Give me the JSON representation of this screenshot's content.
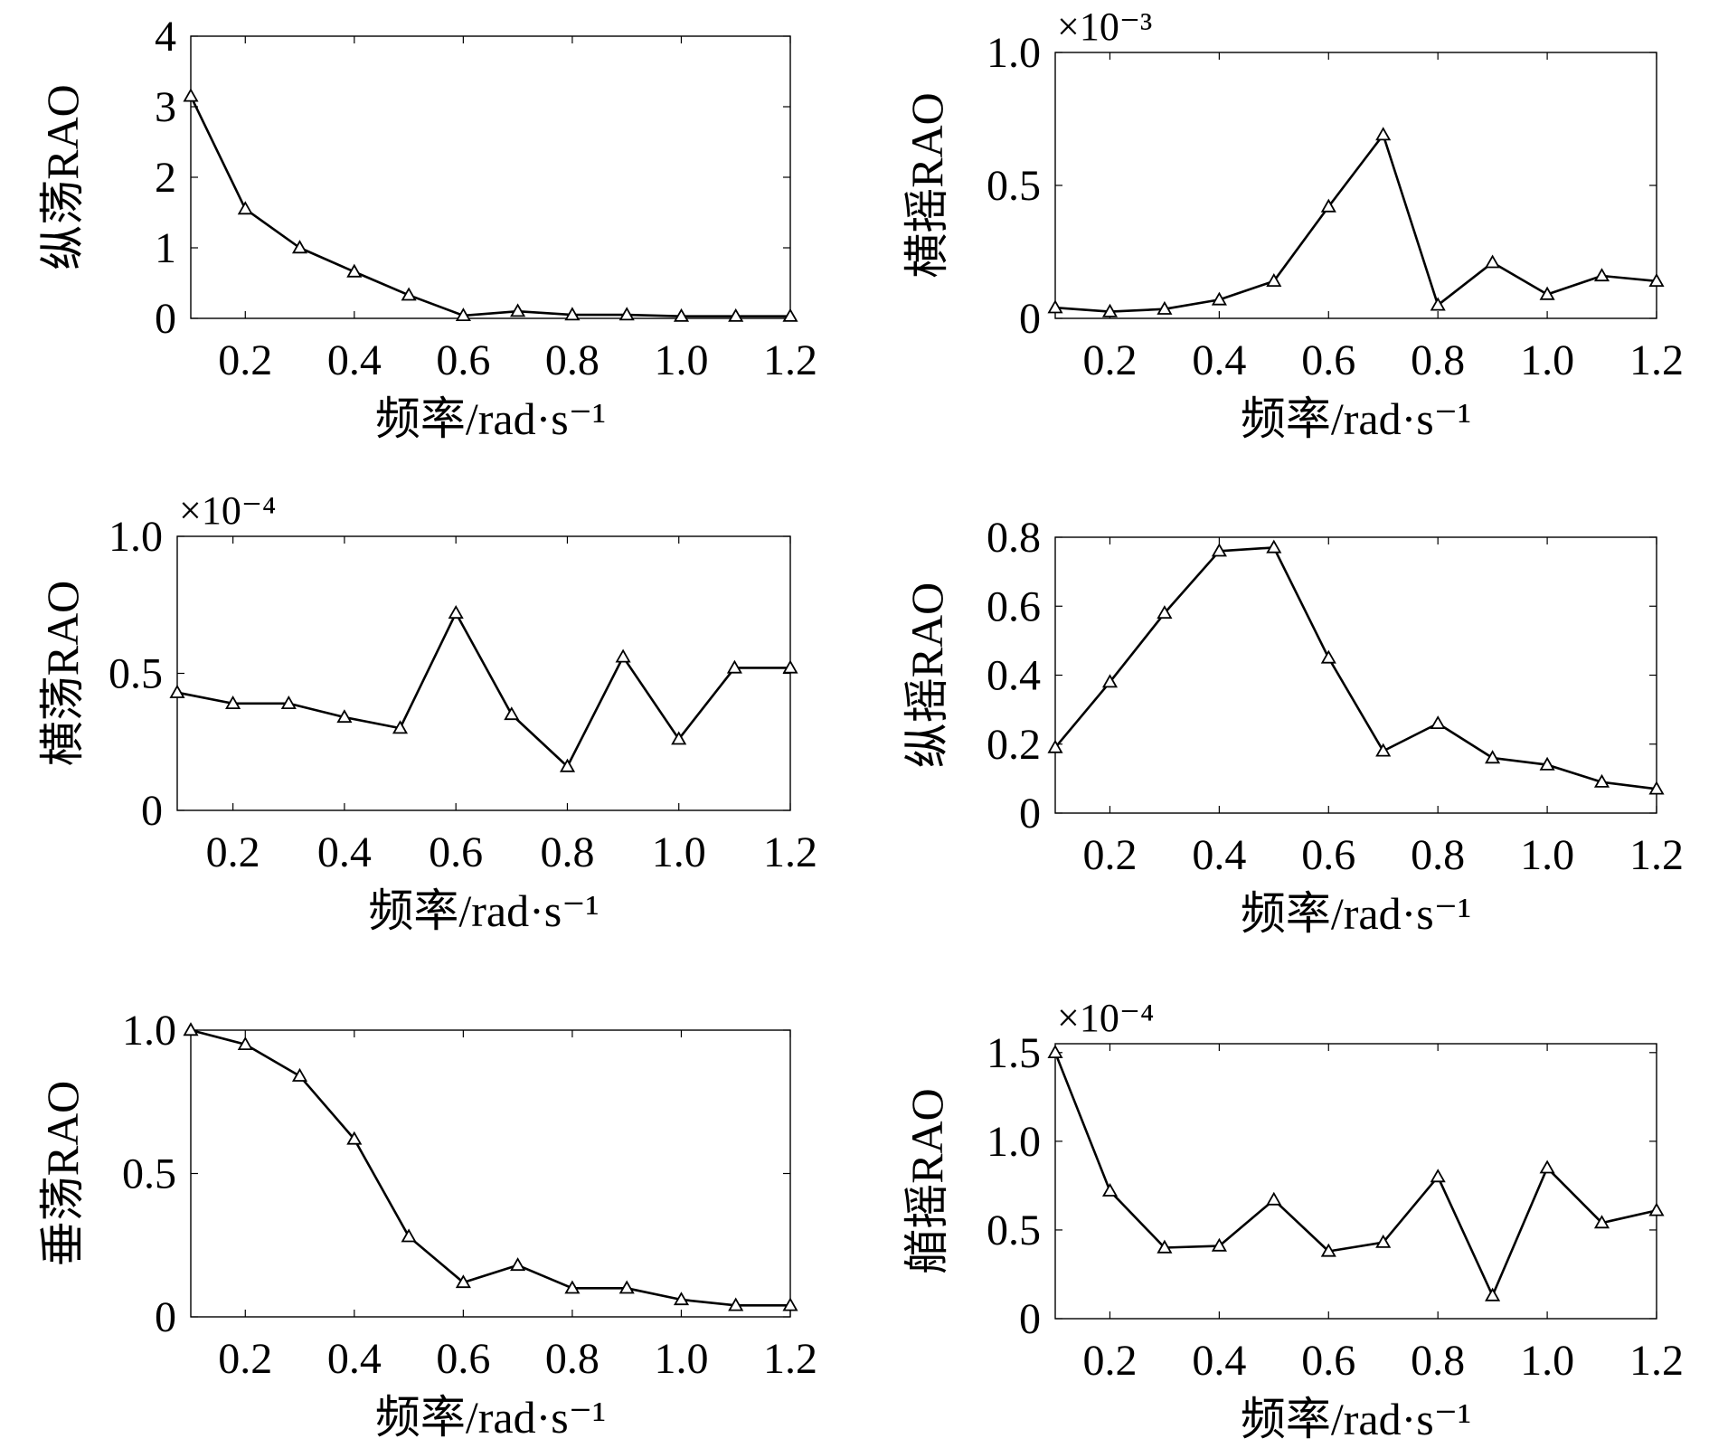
{
  "figure_title": "",
  "chart_data": [
    {
      "type": "line",
      "ylabel": "纵荡RAO",
      "xlabel": "频率/rad·s⁻¹",
      "exponent": "",
      "xlim": [
        0.1,
        1.2
      ],
      "ylim": [
        0,
        4
      ],
      "xticks": [
        0.2,
        0.4,
        0.6,
        0.8,
        1.0,
        1.2
      ],
      "xtick_labels": [
        "0.2",
        "0.4",
        "0.6",
        "0.8",
        "1.0",
        "1.2"
      ],
      "yticks": [
        0,
        1,
        2,
        3,
        4
      ],
      "ytick_labels": [
        "0",
        "1",
        "2",
        "3",
        "4"
      ],
      "grid": false,
      "marker": "triangle",
      "x": [
        0.1,
        0.2,
        0.3,
        0.4,
        0.5,
        0.6,
        0.7,
        0.8,
        0.9,
        1.0,
        1.1,
        1.2
      ],
      "values": [
        3.15,
        1.55,
        1.0,
        0.66,
        0.33,
        0.04,
        0.1,
        0.05,
        0.05,
        0.03,
        0.03,
        0.03
      ]
    },
    {
      "type": "line",
      "ylabel": "横摇RAO",
      "xlabel": "频率/rad·s⁻¹",
      "exponent": "×10⁻³",
      "xlim": [
        0.1,
        1.2
      ],
      "ylim": [
        0,
        1.0
      ],
      "xticks": [
        0.2,
        0.4,
        0.6,
        0.8,
        1.0,
        1.2
      ],
      "xtick_labels": [
        "0.2",
        "0.4",
        "0.6",
        "0.8",
        "1.0",
        "1.2"
      ],
      "yticks": [
        0,
        0.5,
        1.0
      ],
      "ytick_labels": [
        "0",
        "0.5",
        "1.0"
      ],
      "grid": false,
      "marker": "triangle",
      "x": [
        0.1,
        0.2,
        0.3,
        0.4,
        0.5,
        0.6,
        0.7,
        0.8,
        0.9,
        1.0,
        1.1,
        1.2
      ],
      "values": [
        0.04,
        0.025,
        0.035,
        0.07,
        0.14,
        0.42,
        0.69,
        0.05,
        0.21,
        0.09,
        0.16,
        0.14
      ]
    },
    {
      "type": "line",
      "ylabel": "横荡RAO",
      "xlabel": "频率/rad·s⁻¹",
      "exponent": "×10⁻⁴",
      "xlim": [
        0.1,
        1.2
      ],
      "ylim": [
        0,
        1.0
      ],
      "xticks": [
        0.2,
        0.4,
        0.6,
        0.8,
        1.0,
        1.2
      ],
      "xtick_labels": [
        "0.2",
        "0.4",
        "0.6",
        "0.8",
        "1.0",
        "1.2"
      ],
      "yticks": [
        0,
        0.5,
        1.0
      ],
      "ytick_labels": [
        "0",
        "0.5",
        "1.0"
      ],
      "grid": false,
      "marker": "triangle",
      "x": [
        0.1,
        0.2,
        0.3,
        0.4,
        0.5,
        0.6,
        0.7,
        0.8,
        0.9,
        1.0,
        1.1,
        1.2
      ],
      "values": [
        0.43,
        0.39,
        0.39,
        0.34,
        0.3,
        0.72,
        0.35,
        0.16,
        0.56,
        0.26,
        0.52,
        0.52
      ]
    },
    {
      "type": "line",
      "ylabel": "纵摇RAO",
      "xlabel": "频率/rad·s⁻¹",
      "exponent": "",
      "xlim": [
        0.1,
        1.2
      ],
      "ylim": [
        0,
        0.8
      ],
      "xticks": [
        0.2,
        0.4,
        0.6,
        0.8,
        1.0,
        1.2
      ],
      "xtick_labels": [
        "0.2",
        "0.4",
        "0.6",
        "0.8",
        "1.0",
        "1.2"
      ],
      "yticks": [
        0,
        0.2,
        0.4,
        0.6,
        0.8
      ],
      "ytick_labels": [
        "0",
        "0.2",
        "0.4",
        "0.6",
        "0.8"
      ],
      "grid": false,
      "marker": "triangle",
      "x": [
        0.1,
        0.2,
        0.3,
        0.4,
        0.5,
        0.6,
        0.7,
        0.8,
        0.9,
        1.0,
        1.1,
        1.2
      ],
      "values": [
        0.19,
        0.38,
        0.58,
        0.76,
        0.77,
        0.45,
        0.18,
        0.26,
        0.16,
        0.14,
        0.09,
        0.07
      ]
    },
    {
      "type": "line",
      "ylabel": "垂荡RAO",
      "xlabel": "频率/rad·s⁻¹",
      "exponent": "",
      "xlim": [
        0.1,
        1.2
      ],
      "ylim": [
        0,
        1.0
      ],
      "xticks": [
        0.2,
        0.4,
        0.6,
        0.8,
        1.0,
        1.2
      ],
      "xtick_labels": [
        "0.2",
        "0.4",
        "0.6",
        "0.8",
        "1.0",
        "1.2"
      ],
      "yticks": [
        0,
        0.5,
        1.0
      ],
      "ytick_labels": [
        "0",
        "0.5",
        "1.0"
      ],
      "grid": false,
      "marker": "triangle",
      "x": [
        0.1,
        0.2,
        0.3,
        0.4,
        0.5,
        0.6,
        0.7,
        0.8,
        0.9,
        1.0,
        1.1,
        1.2
      ],
      "values": [
        1.0,
        0.95,
        0.84,
        0.62,
        0.28,
        0.12,
        0.18,
        0.1,
        0.1,
        0.06,
        0.04,
        0.04
      ]
    },
    {
      "type": "line",
      "ylabel": "艏摇RAO",
      "xlabel": "频率/rad·s⁻¹",
      "exponent": "×10⁻⁴",
      "xlim": [
        0.1,
        1.2
      ],
      "ylim": [
        0,
        1.55
      ],
      "xticks": [
        0.2,
        0.4,
        0.6,
        0.8,
        1.0,
        1.2
      ],
      "xtick_labels": [
        "0.2",
        "0.4",
        "0.6",
        "0.8",
        "1.0",
        "1.2"
      ],
      "yticks": [
        0,
        0.5,
        1.0,
        1.5
      ],
      "ytick_labels": [
        "0",
        "0.5",
        "1.0",
        "1.5"
      ],
      "grid": false,
      "marker": "triangle",
      "x": [
        0.1,
        0.2,
        0.3,
        0.4,
        0.5,
        0.6,
        0.7,
        0.8,
        0.9,
        1.0,
        1.1,
        1.2
      ],
      "values": [
        1.5,
        0.72,
        0.4,
        0.41,
        0.67,
        0.38,
        0.43,
        0.8,
        0.13,
        0.85,
        0.54,
        0.61
      ]
    }
  ]
}
